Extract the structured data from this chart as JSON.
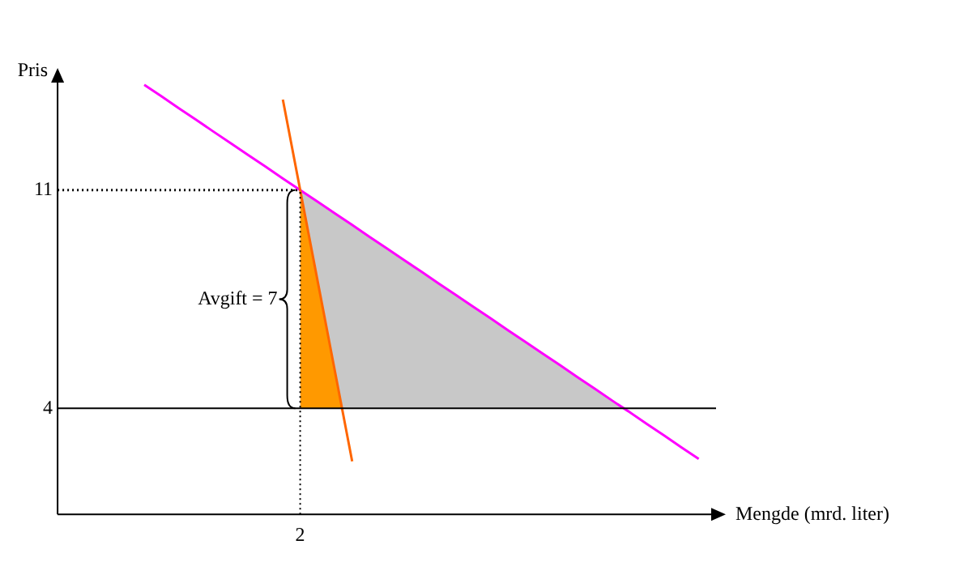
{
  "chart_data": {
    "type": "line",
    "xlabel": "Mengde (mrd. liter)",
    "ylabel": "Pris",
    "categories": [
      null,
      null,
      null,
      null,
      null,
      null,
      null,
      null,
      null,
      null,
      null,
      null,
      null,
      null,
      "2",
      null,
      null,
      null,
      null,
      null,
      null,
      null,
      null,
      null,
      null,
      null,
      null,
      null,
      null,
      null,
      null,
      null,
      null,
      null,
      null,
      null,
      null,
      null,
      null
    ],
    "ylim": [
      0.6,
      14.6
    ],
    "yticks": [
      4,
      11
    ],
    "grid": false,
    "legend": false,
    "marker": "none",
    "series": [
      {
        "type": "area",
        "color": "#c8c8c8",
        "values": [
          null,
          null,
          null,
          null,
          null,
          null,
          null,
          null,
          null,
          null,
          null,
          null,
          null,
          null,
          11.0,
          10.63,
          10.25,
          9.88,
          9.5,
          9.13,
          8.75,
          8.38,
          8.0,
          7.63,
          7.25,
          6.88,
          6.5,
          6.13,
          5.75,
          5.38,
          5.0,
          4.63,
          4.25,
          3.88,
          null,
          null,
          null,
          null,
          null
        ]
      },
      {
        "type": "area",
        "color": "#ff9900",
        "values": [
          null,
          null,
          null,
          null,
          null,
          null,
          null,
          null,
          null,
          null,
          null,
          null,
          null,
          null,
          11.0,
          8.1,
          5.2,
          2.3,
          null,
          null,
          null,
          null,
          null,
          null,
          null,
          null,
          null,
          null,
          null,
          null,
          null,
          null,
          null,
          null,
          null,
          null,
          null,
          null,
          null
        ]
      },
      {
        "type": "line",
        "color": "#000000",
        "line_style": "dotted",
        "values": [
          11,
          11,
          11,
          11,
          11,
          11,
          11,
          11,
          11,
          11,
          11,
          11,
          11,
          11,
          11,
          null,
          null,
          null,
          null,
          null,
          null,
          null,
          null,
          null,
          null,
          null,
          null,
          null,
          null,
          null,
          null,
          null,
          null,
          null,
          null,
          null,
          null,
          null,
          null
        ]
      },
      {
        "type": "line",
        "color": "#ff00ff",
        "line_style": "solid",
        "values": [
          null,
          null,
          null,
          null,
          null,
          14.37,
          14.0,
          13.62,
          13.25,
          12.87,
          12.5,
          12.12,
          11.75,
          11.37,
          11.0,
          10.63,
          10.25,
          9.88,
          9.5,
          9.13,
          8.75,
          8.38,
          8.0,
          7.63,
          7.25,
          6.88,
          6.5,
          6.13,
          5.75,
          5.38,
          5.0,
          4.63,
          4.25,
          3.88,
          3.5,
          3.13,
          2.75,
          2.38,
          null
        ]
      },
      {
        "type": "line",
        "color": "#ff6600",
        "line_style": "solid",
        "values": [
          null,
          null,
          null,
          null,
          null,
          null,
          null,
          null,
          null,
          null,
          null,
          null,
          null,
          13.9,
          11.0,
          8.1,
          5.2,
          2.3,
          null,
          null,
          null,
          null,
          null,
          null,
          null,
          null,
          null,
          null,
          null,
          null,
          null,
          null,
          null,
          null,
          null,
          null,
          null,
          null,
          null
        ]
      }
    ],
    "ref_lines": [
      {
        "axis": "y",
        "value": 4,
        "color": "#000000"
      },
      {
        "axis": "x",
        "value": "2",
        "color": "#000000",
        "line_style": "dotted"
      }
    ],
    "annotations": [
      {
        "text": "Avgift = 7",
        "x": "2",
        "y": 7.5
      }
    ]
  }
}
